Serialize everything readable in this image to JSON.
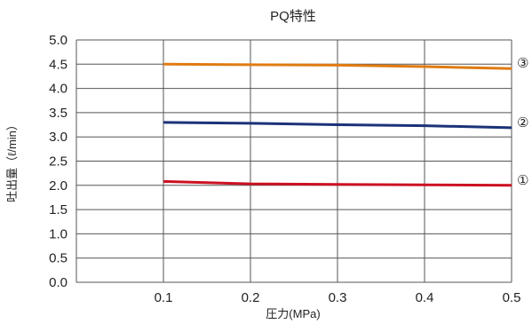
{
  "chart_data": {
    "type": "line",
    "title": "PQ特性",
    "xlabel": "圧力(MPa)",
    "ylabel": "吐出量（ℓ/min）",
    "x": [
      0.1,
      0.2,
      0.3,
      0.4,
      0.5
    ],
    "x_tick_labels": [
      "0.1",
      "0.2",
      "0.3",
      "0.4",
      "0.5"
    ],
    "y_tick_labels": [
      "0.0",
      "0.5",
      "1.0",
      "1.5",
      "2.0",
      "2.5",
      "3.0",
      "3.5",
      "4.0",
      "4.5",
      "5.0"
    ],
    "xlim": [
      0.0,
      0.5
    ],
    "ylim": [
      0.0,
      5.0
    ],
    "grid": true,
    "series": [
      {
        "name": "①",
        "color": "#cc1122",
        "values": [
          2.08,
          2.03,
          2.02,
          2.01,
          2.0
        ]
      },
      {
        "name": "②",
        "color": "#1a3278",
        "values": [
          3.3,
          3.28,
          3.25,
          3.23,
          3.19
        ]
      },
      {
        "name": "③",
        "color": "#e07b12",
        "values": [
          4.5,
          4.49,
          4.48,
          4.45,
          4.41
        ]
      }
    ]
  }
}
